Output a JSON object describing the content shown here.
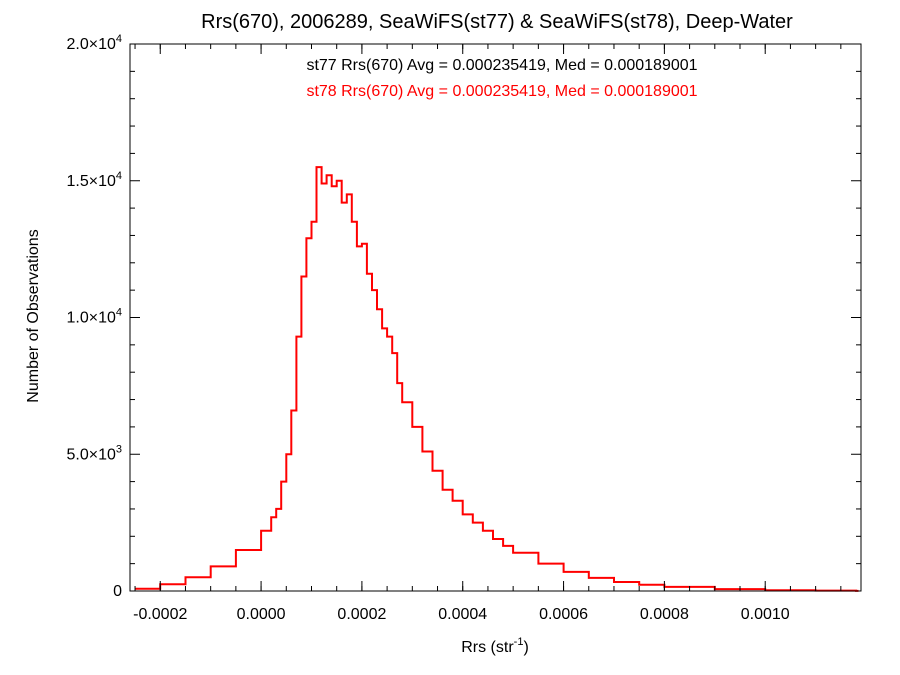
{
  "chart_data": {
    "type": "line",
    "title": "Rrs(670), 2006289, SeaWiFS(st77) & SeaWiFS(st78), Deep-Water",
    "xlabel_main": "Rrs (str",
    "xlabel_sup": "-1",
    "xlabel_end": ")",
    "ylabel": "Number of Observations",
    "xlim": [
      -0.00026,
      0.00119
    ],
    "ylim": [
      0,
      20000
    ],
    "x_ticks": [
      -0.0002,
      0.0,
      0.0002,
      0.0004,
      0.0006,
      0.0008,
      0.001
    ],
    "x_tick_labels": [
      "-0.0002",
      "0.0000",
      "0.0002",
      "0.0004",
      "0.0006",
      "0.0008",
      "0.0010"
    ],
    "y_ticks": [
      {
        "value": 0,
        "mantissa": "0",
        "exp": ""
      },
      {
        "value": 5000,
        "mantissa": "5.0×10",
        "exp": "3"
      },
      {
        "value": 10000,
        "mantissa": "1.0×10",
        "exp": "4"
      },
      {
        "value": 15000,
        "mantissa": "1.5×10",
        "exp": "4"
      },
      {
        "value": 20000,
        "mantissa": "2.0×10",
        "exp": "4"
      }
    ],
    "annotations": [
      {
        "text": "st77 Rrs(670) Avg = 0.000235419, Med = 0.000189001",
        "color": "#000000"
      },
      {
        "text": "st78 Rrs(670) Avg = 0.000235419, Med = 0.000189001",
        "color": "#ff0000"
      }
    ],
    "series": [
      {
        "color": "#ff0000",
        "style": "step",
        "x": [
          -0.00025,
          -0.0002,
          -0.00015,
          -0.0001,
          -5e-05,
          0.0,
          2e-05,
          3e-05,
          4e-05,
          5e-05,
          6e-05,
          7e-05,
          8e-05,
          9e-05,
          0.0001,
          0.00011,
          0.00012,
          0.00013,
          0.00014,
          0.00015,
          0.00016,
          0.00017,
          0.00018,
          0.00019,
          0.0002,
          0.00021,
          0.00022,
          0.00023,
          0.00024,
          0.00025,
          0.00026,
          0.00027,
          0.00028,
          0.0003,
          0.00032,
          0.00034,
          0.00036,
          0.00038,
          0.0004,
          0.00042,
          0.00044,
          0.00046,
          0.00048,
          0.0005,
          0.00055,
          0.0006,
          0.00065,
          0.0007,
          0.00075,
          0.0008,
          0.0009,
          0.001,
          0.0011,
          0.00118
        ],
        "y": [
          80,
          250,
          500,
          900,
          1500,
          2200,
          2700,
          3000,
          4000,
          5000,
          6600,
          9300,
          11500,
          12900,
          13500,
          15500,
          14900,
          15200,
          14800,
          15000,
          14200,
          14500,
          13500,
          12600,
          12700,
          11600,
          11000,
          10300,
          9600,
          9300,
          8700,
          7600,
          6900,
          6000,
          5100,
          4400,
          3700,
          3300,
          2800,
          2500,
          2200,
          1900,
          1650,
          1400,
          1000,
          700,
          480,
          330,
          230,
          150,
          70,
          30,
          15,
          5
        ]
      }
    ]
  }
}
